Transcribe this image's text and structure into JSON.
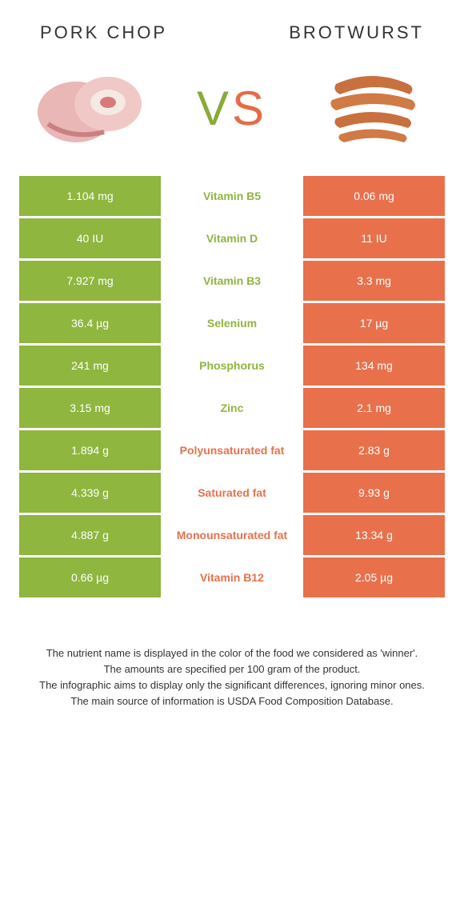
{
  "header": {
    "left_title": "Pork chop",
    "right_title": "Brotwurst"
  },
  "vs": {
    "v": "V",
    "s": "S"
  },
  "colors": {
    "green": "#8fb63f",
    "orange": "#e8714c",
    "mid_green_text": "#8fb63f",
    "mid_orange_text": "#e8714c"
  },
  "rows": [
    {
      "left": "1.104 mg",
      "mid": "Vitamin B5",
      "right": "0.06 mg",
      "winner": "left"
    },
    {
      "left": "40 IU",
      "mid": "Vitamin D",
      "right": "11 IU",
      "winner": "left"
    },
    {
      "left": "7.927 mg",
      "mid": "Vitamin B3",
      "right": "3.3 mg",
      "winner": "left"
    },
    {
      "left": "36.4 µg",
      "mid": "Selenium",
      "right": "17 µg",
      "winner": "left"
    },
    {
      "left": "241 mg",
      "mid": "Phosphorus",
      "right": "134 mg",
      "winner": "left"
    },
    {
      "left": "3.15 mg",
      "mid": "Zinc",
      "right": "2.1 mg",
      "winner": "left"
    },
    {
      "left": "1.894 g",
      "mid": "Polyunsaturated fat",
      "right": "2.83 g",
      "winner": "right"
    },
    {
      "left": "4.339 g",
      "mid": "Saturated fat",
      "right": "9.93 g",
      "winner": "right"
    },
    {
      "left": "4.887 g",
      "mid": "Monounsaturated fat",
      "right": "13.34 g",
      "winner": "right"
    },
    {
      "left": "0.66 µg",
      "mid": "Vitamin B12",
      "right": "2.05 µg",
      "winner": "right"
    }
  ],
  "footer": {
    "line1": "The nutrient name is displayed in the color of the food we considered as 'winner'.",
    "line2": "The amounts are specified per 100 gram of the product.",
    "line3": "The infographic aims to display only the significant differences, ignoring minor ones.",
    "line4": "The main source of information is USDA Food Composition Database."
  }
}
